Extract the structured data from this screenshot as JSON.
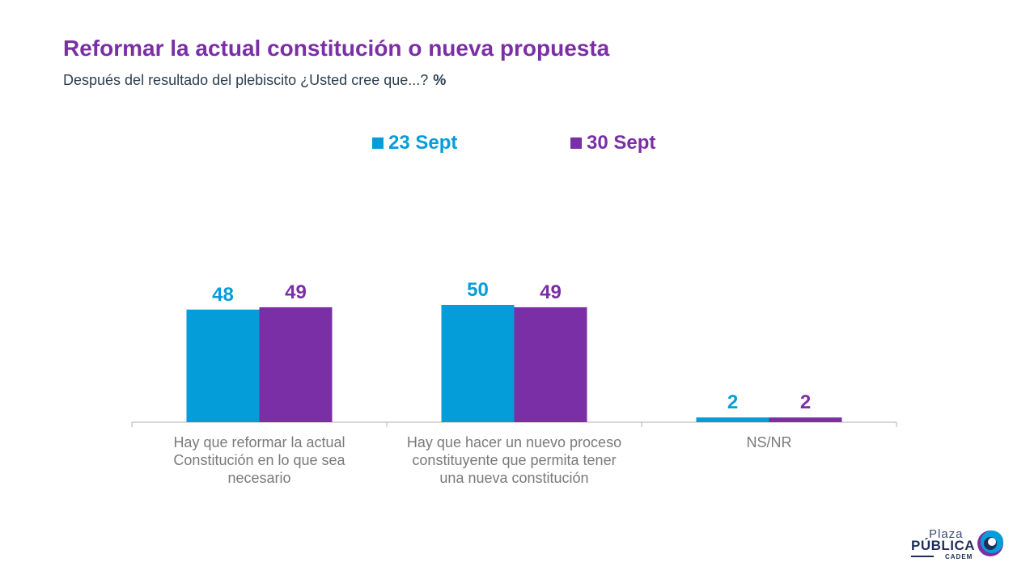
{
  "header": {
    "title": "Reformar la actual constitución o nueva propuesta",
    "subtitle": "Después del resultado del plebiscito ¿Usted cree que...?",
    "unit": "%"
  },
  "legend": [
    {
      "label": "23 Sept",
      "color": "#049dd9"
    },
    {
      "label": "30 Sept",
      "color": "#7b2fa6"
    }
  ],
  "chart_data": {
    "type": "bar",
    "categories": [
      [
        "Hay que reformar la actual",
        "Constitución en lo que sea",
        "necesario"
      ],
      [
        "Hay que hacer un nuevo proceso",
        "constituyente que permita tener",
        "una nueva constitución"
      ],
      [
        "NS/NR"
      ]
    ],
    "series": [
      {
        "name": "23 Sept",
        "values": [
          48,
          50,
          2
        ],
        "color": "#049dd9"
      },
      {
        "name": "30 Sept",
        "values": [
          49,
          49,
          2
        ],
        "color": "#7b2fa6"
      }
    ],
    "ylim": [
      0,
      50
    ],
    "grid": false,
    "legend_position": "top-center"
  },
  "logo": {
    "line1": "Plaza",
    "line2": "PÚBLICA",
    "line3": "CADEM"
  }
}
